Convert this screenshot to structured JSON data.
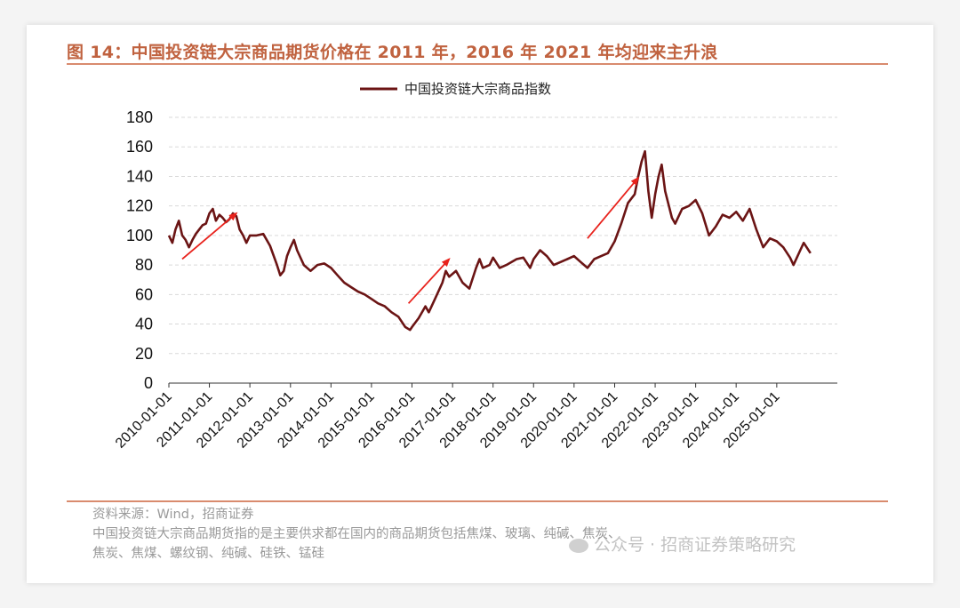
{
  "figure": {
    "title": "图 14：中国投资链大宗商品期货价格在 2011 年，2016 年 2021 年均迎来主升浪",
    "source": "资料来源：Wind，招商证券",
    "note_line1": "中国投资链大宗商品期货指的是主要供求都在国内的商品期货包括焦煤、玻璃、纯碱、焦炭、",
    "note_line2": "焦炭、焦煤、螺纹钢、纯碱、硅铁、锰硅",
    "watermark": "公众号 · 招商证券策略研究"
  },
  "colors": {
    "line": "#6b1414",
    "arrow": "#e8221c",
    "title": "#c0623f",
    "rule": "#d98b6e",
    "grid": "#d9d9d9"
  },
  "chart_data": {
    "type": "line",
    "title": "",
    "legend_position": "top-center",
    "grid": true,
    "grid_style": "dashed-horizontal",
    "ylim": [
      0,
      180
    ],
    "yticks": [
      0,
      20,
      40,
      60,
      80,
      100,
      120,
      140,
      160,
      180
    ],
    "xlim": [
      "2010-01-01",
      "2026-07-01"
    ],
    "xticks": [
      "2010-01-01",
      "2011-01-01",
      "2012-01-01",
      "2013-01-01",
      "2014-01-01",
      "2015-01-01",
      "2016-01-01",
      "2017-01-01",
      "2018-01-01",
      "2019-01-01",
      "2020-01-01",
      "2021-01-01",
      "2022-01-01",
      "2023-01-01",
      "2024-01-01",
      "2025-01-01"
    ],
    "series": [
      {
        "name": "中国投资链大宗商品指数",
        "points": [
          [
            "2010-01-01",
            100
          ],
          [
            "2010-02-01",
            95
          ],
          [
            "2010-03-01",
            104
          ],
          [
            "2010-04-01",
            110
          ],
          [
            "2010-05-01",
            100
          ],
          [
            "2010-06-01",
            97
          ],
          [
            "2010-07-01",
            92
          ],
          [
            "2010-08-01",
            97
          ],
          [
            "2010-09-01",
            101
          ],
          [
            "2010-10-01",
            104
          ],
          [
            "2010-11-01",
            107
          ],
          [
            "2010-12-01",
            108
          ],
          [
            "2011-01-01",
            115
          ],
          [
            "2011-02-01",
            118
          ],
          [
            "2011-03-01",
            110
          ],
          [
            "2011-04-01",
            114
          ],
          [
            "2011-05-01",
            112
          ],
          [
            "2011-06-01",
            109
          ],
          [
            "2011-07-01",
            111
          ],
          [
            "2011-08-01",
            115
          ],
          [
            "2011-09-01",
            113
          ],
          [
            "2011-10-01",
            104
          ],
          [
            "2011-11-01",
            100
          ],
          [
            "2011-12-01",
            95
          ],
          [
            "2012-01-01",
            100
          ],
          [
            "2012-03-01",
            100
          ],
          [
            "2012-05-01",
            101
          ],
          [
            "2012-07-01",
            93
          ],
          [
            "2012-09-01",
            80
          ],
          [
            "2012-10-01",
            73
          ],
          [
            "2012-11-01",
            76
          ],
          [
            "2012-12-01",
            86
          ],
          [
            "2013-01-01",
            92
          ],
          [
            "2013-02-01",
            97
          ],
          [
            "2013-03-01",
            90
          ],
          [
            "2013-05-01",
            80
          ],
          [
            "2013-07-01",
            76
          ],
          [
            "2013-09-01",
            80
          ],
          [
            "2013-11-01",
            81
          ],
          [
            "2014-01-01",
            78
          ],
          [
            "2014-03-01",
            73
          ],
          [
            "2014-05-01",
            68
          ],
          [
            "2014-07-01",
            65
          ],
          [
            "2014-09-01",
            62
          ],
          [
            "2014-11-01",
            60
          ],
          [
            "2015-01-01",
            57
          ],
          [
            "2015-03-01",
            54
          ],
          [
            "2015-05-01",
            52
          ],
          [
            "2015-07-01",
            48
          ],
          [
            "2015-09-01",
            45
          ],
          [
            "2015-11-01",
            38
          ],
          [
            "2015-12-15",
            36
          ],
          [
            "2016-01-01",
            38
          ],
          [
            "2016-03-01",
            44
          ],
          [
            "2016-05-01",
            52
          ],
          [
            "2016-06-01",
            48
          ],
          [
            "2016-08-01",
            58
          ],
          [
            "2016-10-01",
            68
          ],
          [
            "2016-11-01",
            76
          ],
          [
            "2016-12-01",
            72
          ],
          [
            "2017-01-01",
            74
          ],
          [
            "2017-02-01",
            76
          ],
          [
            "2017-04-01",
            68
          ],
          [
            "2017-06-01",
            64
          ],
          [
            "2017-08-01",
            78
          ],
          [
            "2017-09-01",
            84
          ],
          [
            "2017-10-01",
            78
          ],
          [
            "2017-12-01",
            80
          ],
          [
            "2018-01-01",
            85
          ],
          [
            "2018-03-01",
            78
          ],
          [
            "2018-05-01",
            80
          ],
          [
            "2018-08-01",
            84
          ],
          [
            "2018-10-01",
            85
          ],
          [
            "2018-12-01",
            78
          ],
          [
            "2019-01-01",
            84
          ],
          [
            "2019-03-01",
            90
          ],
          [
            "2019-05-01",
            86
          ],
          [
            "2019-07-01",
            80
          ],
          [
            "2019-09-01",
            82
          ],
          [
            "2019-11-01",
            84
          ],
          [
            "2020-01-01",
            86
          ],
          [
            "2020-03-01",
            82
          ],
          [
            "2020-05-01",
            78
          ],
          [
            "2020-07-01",
            84
          ],
          [
            "2020-09-01",
            86
          ],
          [
            "2020-11-01",
            88
          ],
          [
            "2021-01-01",
            96
          ],
          [
            "2021-03-01",
            108
          ],
          [
            "2021-05-01",
            122
          ],
          [
            "2021-07-01",
            128
          ],
          [
            "2021-08-01",
            140
          ],
          [
            "2021-09-01",
            150
          ],
          [
            "2021-10-01",
            157
          ],
          [
            "2021-11-01",
            130
          ],
          [
            "2021-12-01",
            112
          ],
          [
            "2022-01-01",
            128
          ],
          [
            "2022-02-01",
            140
          ],
          [
            "2022-03-01",
            148
          ],
          [
            "2022-04-01",
            130
          ],
          [
            "2022-06-01",
            112
          ],
          [
            "2022-07-01",
            108
          ],
          [
            "2022-09-01",
            118
          ],
          [
            "2022-11-01",
            120
          ],
          [
            "2023-01-01",
            124
          ],
          [
            "2023-03-01",
            115
          ],
          [
            "2023-05-01",
            100
          ],
          [
            "2023-07-01",
            106
          ],
          [
            "2023-09-01",
            114
          ],
          [
            "2023-11-01",
            112
          ],
          [
            "2024-01-01",
            116
          ],
          [
            "2024-03-01",
            110
          ],
          [
            "2024-05-01",
            118
          ],
          [
            "2024-07-01",
            104
          ],
          [
            "2024-09-01",
            92
          ],
          [
            "2024-11-01",
            98
          ],
          [
            "2025-01-01",
            96
          ],
          [
            "2025-03-01",
            92
          ],
          [
            "2025-05-01",
            85
          ],
          [
            "2025-06-01",
            80
          ],
          [
            "2025-08-01",
            90
          ],
          [
            "2025-09-01",
            95
          ],
          [
            "2025-11-01",
            88
          ]
        ]
      }
    ],
    "annotations": [
      {
        "type": "arrow",
        "from": [
          "2010-05-01",
          84
        ],
        "to": [
          "2011-09-01",
          115
        ]
      },
      {
        "type": "arrow",
        "from": [
          "2015-12-01",
          54
        ],
        "to": [
          "2016-12-01",
          84
        ]
      },
      {
        "type": "arrow",
        "from": [
          "2020-05-01",
          98
        ],
        "to": [
          "2021-08-01",
          139
        ]
      }
    ]
  }
}
